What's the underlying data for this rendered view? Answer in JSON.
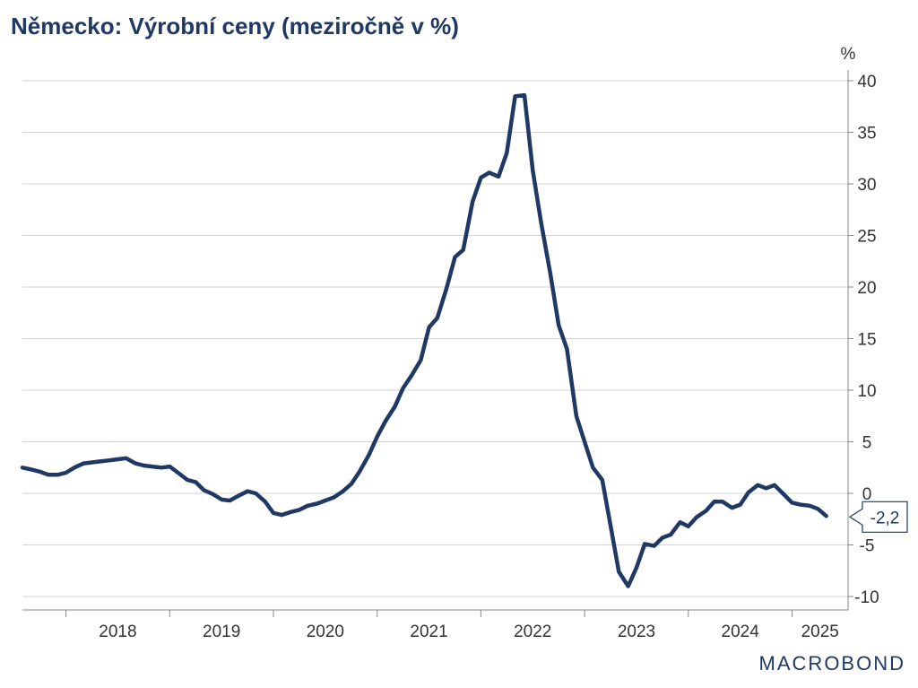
{
  "chart_data": {
    "type": "line",
    "title": "Německo: Výrobní ceny (meziročně v %)",
    "ylabel": "%",
    "ylim": [
      -11,
      41
    ],
    "yticks": [
      -10,
      -5,
      0,
      5,
      10,
      15,
      20,
      25,
      30,
      35,
      40
    ],
    "xlim": [
      2017.58,
      2025.54
    ],
    "xtick_years": [
      "2018",
      "2019",
      "2020",
      "2021",
      "2022",
      "2023",
      "2024",
      "2025"
    ],
    "last_value_label": "-2,2",
    "series": [
      {
        "name": "Německo: Výrobní ceny",
        "color": "#1f3864",
        "x": [
          2017.58,
          2017.67,
          2017.75,
          2017.83,
          2017.92,
          2018.0,
          2018.08,
          2018.17,
          2018.25,
          2018.33,
          2018.42,
          2018.5,
          2018.58,
          2018.67,
          2018.75,
          2018.83,
          2018.92,
          2019.0,
          2019.08,
          2019.17,
          2019.25,
          2019.33,
          2019.42,
          2019.5,
          2019.58,
          2019.67,
          2019.75,
          2019.83,
          2019.92,
          2020.0,
          2020.08,
          2020.17,
          2020.25,
          2020.33,
          2020.42,
          2020.5,
          2020.58,
          2020.67,
          2020.75,
          2020.83,
          2020.92,
          2021.0,
          2021.08,
          2021.17,
          2021.25,
          2021.33,
          2021.42,
          2021.5,
          2021.58,
          2021.67,
          2021.75,
          2021.83,
          2021.92,
          2022.0,
          2022.08,
          2022.17,
          2022.25,
          2022.33,
          2022.42,
          2022.5,
          2022.58,
          2022.67,
          2022.75,
          2022.83,
          2022.92,
          2023.0,
          2023.08,
          2023.17,
          2023.25,
          2023.33,
          2023.42,
          2023.5,
          2023.58,
          2023.67,
          2023.75,
          2023.83,
          2023.92,
          2024.0,
          2024.08,
          2024.17,
          2024.25,
          2024.33,
          2024.42,
          2024.5,
          2024.58,
          2024.67,
          2024.75,
          2024.83,
          2024.92,
          2025.0,
          2025.08,
          2025.17,
          2025.25,
          2025.33
        ],
        "values": [
          2.5,
          2.3,
          2.1,
          1.8,
          1.8,
          2.0,
          2.5,
          2.9,
          3.0,
          3.1,
          3.2,
          3.3,
          3.4,
          2.9,
          2.7,
          2.6,
          2.5,
          2.6,
          2.0,
          1.3,
          1.1,
          0.3,
          -0.1,
          -0.6,
          -0.7,
          -0.2,
          0.2,
          0.0,
          -0.8,
          -1.9,
          -2.1,
          -1.8,
          -1.6,
          -1.2,
          -1.0,
          -0.7,
          -0.4,
          0.2,
          0.9,
          2.1,
          3.7,
          5.5,
          7.0,
          8.4,
          10.2,
          11.4,
          12.9,
          16.1,
          17.0,
          19.9,
          22.9,
          23.6,
          28.3,
          30.6,
          31.1,
          30.7,
          33.0,
          38.5,
          38.6,
          31.3,
          26.3,
          21.3,
          16.3,
          14.0,
          7.5,
          5.0,
          2.5,
          1.3,
          -3.1,
          -7.6,
          -9.0,
          -7.2,
          -4.9,
          -5.1,
          -4.3,
          -4.0,
          -2.8,
          -3.2,
          -2.3,
          -1.7,
          -0.8,
          -0.8,
          -1.4,
          -1.1,
          0.1,
          0.8,
          0.5,
          0.8,
          -0.1,
          -0.9,
          -1.1,
          -1.2,
          -1.5,
          -2.2
        ]
      }
    ]
  },
  "branding": {
    "logo_text": "MACROBOND"
  },
  "colors": {
    "line": "#1f3864",
    "grid": "#d3d3d3",
    "axis": "#888888",
    "title": "#1f3864"
  }
}
